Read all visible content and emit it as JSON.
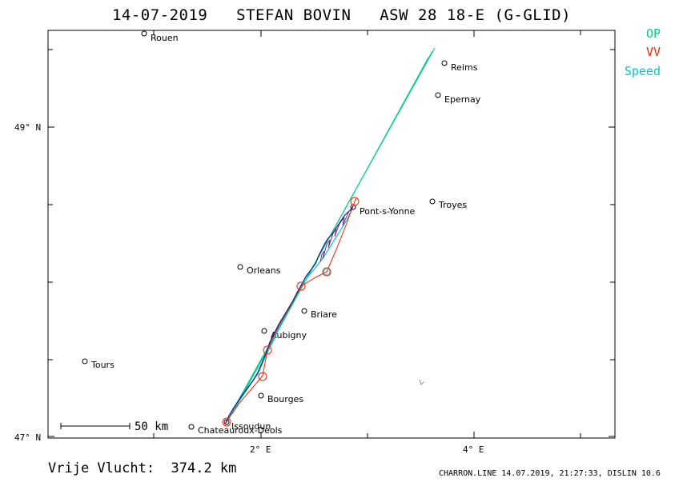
{
  "title": "14-07-2019   STEFAN BOVIN   ASW 28 18-E (G-GLID)",
  "legend": [
    {
      "label": "OP",
      "color": "#00cc88"
    },
    {
      "label": "VV",
      "color": "#ff2200"
    },
    {
      "label": "Speed",
      "color": "#00c8d8"
    }
  ],
  "axes": {
    "y_labels": [
      "49° N",
      "47° N"
    ],
    "x_labels": [
      "2° E",
      "4° E"
    ]
  },
  "scale_bar": "50  km",
  "towns": [
    {
      "name": "Rouen"
    },
    {
      "name": "Reims"
    },
    {
      "name": "Epernay"
    },
    {
      "name": "Troyes"
    },
    {
      "name": "Pont-s-Yonne"
    },
    {
      "name": "Orleans"
    },
    {
      "name": "Briare"
    },
    {
      "name": "Aubigny"
    },
    {
      "name": "Tours"
    },
    {
      "name": "Bourges"
    },
    {
      "name": "Issoudun"
    },
    {
      "name": "Chateauroux-Deols"
    }
  ],
  "footer": {
    "distance": "Vrije Vlucht:  374.2 km",
    "credit": "CHARRON.LINE 14.07.2019, 21:27:33, DISLIN 10.6"
  }
}
